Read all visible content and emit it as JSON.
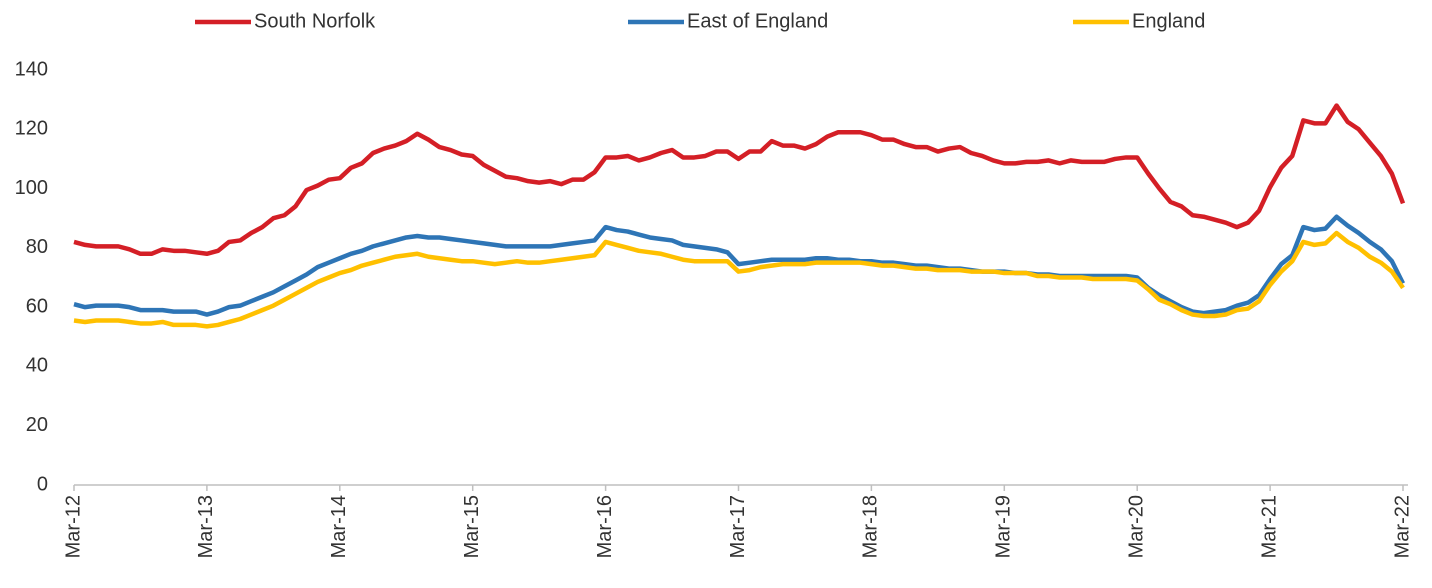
{
  "chart_data": {
    "type": "line",
    "categories": [
      "Mar-12",
      null,
      null,
      null,
      null,
      null,
      null,
      null,
      null,
      null,
      null,
      null,
      "Mar-13",
      null,
      null,
      null,
      null,
      null,
      null,
      null,
      null,
      null,
      null,
      null,
      "Mar-14",
      null,
      null,
      null,
      null,
      null,
      null,
      null,
      null,
      null,
      null,
      null,
      "Mar-15",
      null,
      null,
      null,
      null,
      null,
      null,
      null,
      null,
      null,
      null,
      null,
      "Mar-16",
      null,
      null,
      null,
      null,
      null,
      null,
      null,
      null,
      null,
      null,
      null,
      "Mar-17",
      null,
      null,
      null,
      null,
      null,
      null,
      null,
      null,
      null,
      null,
      null,
      "Mar-18",
      null,
      null,
      null,
      null,
      null,
      null,
      null,
      null,
      null,
      null,
      null,
      "Mar-19",
      null,
      null,
      null,
      null,
      null,
      null,
      null,
      null,
      null,
      null,
      null,
      "Mar-20",
      null,
      null,
      null,
      null,
      null,
      null,
      null,
      null,
      null,
      null,
      null,
      "Mar-21",
      null,
      null,
      null,
      null,
      null,
      null,
      null,
      null,
      null,
      null,
      null,
      "Mar-22"
    ],
    "series": [
      {
        "name": "South Norfolk",
        "color": "#d41f26",
        "values": [
          82,
          81,
          80.5,
          80.5,
          80.5,
          79.5,
          78,
          78,
          79.5,
          79,
          79,
          78.5,
          78,
          79,
          82,
          82.5,
          85,
          87,
          90,
          91,
          94,
          99.5,
          101,
          103,
          103.5,
          107,
          108.5,
          112,
          113.5,
          114.5,
          116,
          118.5,
          116.5,
          114,
          113,
          111.5,
          111,
          108,
          106,
          104,
          103.5,
          102.5,
          102,
          102.5,
          101.5,
          103,
          103,
          105.5,
          110.5,
          110.5,
          111,
          109.5,
          110.5,
          112,
          113,
          110.5,
          110.5,
          111,
          112.5,
          112.5,
          110,
          112.5,
          112.5,
          116,
          114.5,
          114.5,
          113.5,
          115,
          117.5,
          119,
          119,
          119,
          118,
          116.5,
          116.5,
          115,
          114,
          114,
          112.5,
          113.5,
          114,
          112,
          111,
          109.5,
          108.5,
          108.5,
          109,
          109,
          109.5,
          108.5,
          109.5,
          109,
          109,
          109,
          110,
          110.5,
          110.5,
          105,
          100,
          95.5,
          94,
          91,
          90.5,
          89.5,
          88.5,
          87,
          88.5,
          92.5,
          100.5,
          107,
          111,
          123,
          122,
          122,
          128,
          122.5,
          120,
          115.5,
          111,
          105,
          95
        ]
      },
      {
        "name": "East of England",
        "color": "#2e75b6",
        "values": [
          61,
          60,
          60.5,
          60.5,
          60.5,
          60,
          59,
          59,
          59,
          58.5,
          58.5,
          58.5,
          57.5,
          58.5,
          60,
          60.5,
          62,
          63.5,
          65,
          67,
          69,
          71,
          73.5,
          75,
          76.5,
          78,
          79,
          80.5,
          81.5,
          82.5,
          83.5,
          84,
          83.5,
          83.5,
          83,
          82.5,
          82,
          81.5,
          81,
          80.5,
          80.5,
          80.5,
          80.5,
          80.5,
          81,
          81.5,
          82,
          82.5,
          87,
          86,
          85.5,
          84.5,
          83.5,
          83,
          82.5,
          81,
          80.5,
          80,
          79.5,
          78.5,
          74.5,
          75,
          75.5,
          76,
          76,
          76,
          76,
          76.5,
          76.5,
          76,
          76,
          75.5,
          75.5,
          75,
          75,
          74.5,
          74,
          74,
          73.5,
          73,
          73,
          72.5,
          72,
          72,
          72,
          71.5,
          71.5,
          71,
          71,
          70.5,
          70.5,
          70.5,
          70.5,
          70.5,
          70.5,
          70.5,
          70,
          66.5,
          64,
          62,
          60,
          58.5,
          58,
          58.5,
          59,
          60.5,
          61.5,
          64,
          69.5,
          74.5,
          77.5,
          87,
          86,
          86.5,
          90.5,
          87.5,
          85,
          82,
          79.5,
          75.5,
          68
        ]
      },
      {
        "name": "England",
        "color": "#ffc000",
        "values": [
          55.5,
          55,
          55.5,
          55.5,
          55.5,
          55,
          54.5,
          54.5,
          55,
          54,
          54,
          54,
          53.5,
          54,
          55,
          56,
          57.5,
          59,
          60.5,
          62.5,
          64.5,
          66.5,
          68.5,
          70,
          71.5,
          72.5,
          74,
          75,
          76,
          77,
          77.5,
          78,
          77,
          76.5,
          76,
          75.5,
          75.5,
          75,
          74.5,
          75,
          75.5,
          75,
          75,
          75.5,
          76,
          76.5,
          77,
          77.5,
          82,
          81,
          80,
          79,
          78.5,
          78,
          77,
          76,
          75.5,
          75.5,
          75.5,
          75.5,
          72,
          72.5,
          73.5,
          74,
          74.5,
          74.5,
          74.5,
          75,
          75,
          75,
          75,
          75,
          74.5,
          74,
          74,
          73.5,
          73,
          73,
          72.5,
          72.5,
          72.5,
          72,
          72,
          72,
          71.5,
          71.5,
          71.5,
          70.5,
          70.5,
          70,
          70,
          70,
          69.5,
          69.5,
          69.5,
          69.5,
          69,
          66,
          62.5,
          61,
          59,
          57.5,
          57,
          57,
          57.5,
          59,
          59.5,
          62,
          67.5,
          72,
          75.5,
          82,
          81,
          81.5,
          85,
          82,
          80,
          77,
          75,
          72,
          66.5
        ]
      }
    ],
    "ylim": [
      0,
      140
    ],
    "yticks": [
      0,
      20,
      40,
      60,
      80,
      100,
      120,
      140
    ],
    "grid": false,
    "legend": "top"
  }
}
